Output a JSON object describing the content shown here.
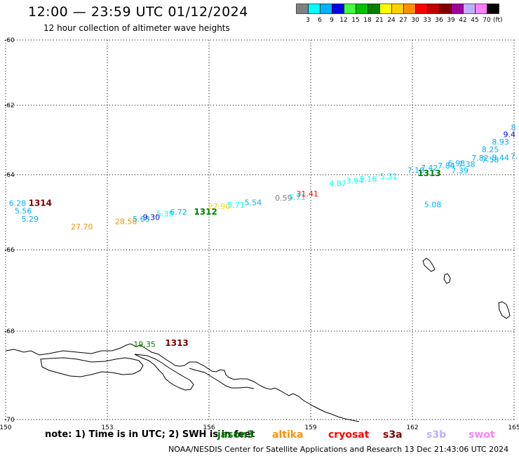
{
  "header": {
    "title": "12:00 — 23:59 UTC 01/12/2024",
    "subtitle": "12 hour collection of altimeter wave heights"
  },
  "color_scale": {
    "unit": "(ft)",
    "bins": [
      {
        "label": "3",
        "color": "#808080"
      },
      {
        "label": "6",
        "color": "#00ffff"
      },
      {
        "label": "9",
        "color": "#00b0ff"
      },
      {
        "label": "12",
        "color": "#0000e0"
      },
      {
        "label": "15",
        "color": "#40ff40"
      },
      {
        "label": "18",
        "color": "#00c000"
      },
      {
        "label": "21",
        "color": "#008000"
      },
      {
        "label": "24",
        "color": "#ffff00"
      },
      {
        "label": "27",
        "color": "#ffd000"
      },
      {
        "label": "30",
        "color": "#ff9000"
      },
      {
        "label": "33",
        "color": "#ff0000"
      },
      {
        "label": "36",
        "color": "#c00000"
      },
      {
        "label": "39",
        "color": "#800000"
      },
      {
        "label": "42",
        "color": "#a000a0"
      },
      {
        "label": "45",
        "color": "#c0b0ff"
      },
      {
        "label": "70",
        "color": "#ff80ff"
      },
      {
        "label": "",
        "color": "#000000"
      }
    ]
  },
  "map": {
    "lon_ticks": [
      150,
      153,
      156,
      159,
      162,
      165
    ],
    "lat_ticks": [
      -60,
      -62,
      -64,
      -66,
      -68,
      -70
    ],
    "grid": true,
    "observations": [
      {
        "text": "6.28",
        "lon": 150.35,
        "lat": -64.76,
        "color": "#00b0ff"
      },
      {
        "text": "5.56",
        "lon": 150.52,
        "lat": -64.96,
        "color": "#00b0ff"
      },
      {
        "text": "5.29",
        "lon": 150.72,
        "lat": -65.18,
        "color": "#00b0ff"
      },
      {
        "text": "1314",
        "lon": 151.02,
        "lat": -64.76,
        "color": "#800000",
        "bold": true
      },
      {
        "text": "27.70",
        "lon": 152.25,
        "lat": -65.38,
        "color": "#ff9000"
      },
      {
        "text": "28.58",
        "lon": 153.55,
        "lat": -65.24,
        "color": "#ff9000"
      },
      {
        "text": "5.63",
        "lon": 154.0,
        "lat": -65.18,
        "color": "#00b0ff"
      },
      {
        "text": "9.30",
        "lon": 154.3,
        "lat": -65.13,
        "color": "#0000e0"
      },
      {
        "text": "5.39",
        "lon": 154.7,
        "lat": -65.04,
        "color": "#00ffff"
      },
      {
        "text": "6.72",
        "lon": 155.1,
        "lat": -64.99,
        "color": "#00b0ff"
      },
      {
        "text": "1312",
        "lon": 155.9,
        "lat": -64.99,
        "color": "#008000",
        "bold": true
      },
      {
        "text": "27.90",
        "lon": 156.3,
        "lat": -64.84,
        "color": "#ffd000"
      },
      {
        "text": "5.71",
        "lon": 156.8,
        "lat": -64.8,
        "color": "#00ffff"
      },
      {
        "text": "5.54",
        "lon": 157.3,
        "lat": -64.74,
        "color": "#00b0ff"
      },
      {
        "text": "0.59",
        "lon": 158.2,
        "lat": -64.62,
        "color": "#808080"
      },
      {
        "text": "5.71",
        "lon": 158.6,
        "lat": -64.6,
        "color": "#00ffff"
      },
      {
        "text": "31.41",
        "lon": 158.9,
        "lat": -64.5,
        "color": "#ff0000"
      },
      {
        "text": "4.87",
        "lon": 159.8,
        "lat": -64.23,
        "color": "#00ffff"
      },
      {
        "text": "3.94",
        "lon": 160.3,
        "lat": -64.16,
        "color": "#00ffff"
      },
      {
        "text": "5.16",
        "lon": 160.7,
        "lat": -64.11,
        "color": "#00ffff"
      },
      {
        "text": "5.31",
        "lon": 161.3,
        "lat": -64.04,
        "color": "#00ffff"
      },
      {
        "text": "7.10",
        "lon": 162.1,
        "lat": -63.87,
        "color": "#00b0ff"
      },
      {
        "text": "1313",
        "lon": 162.5,
        "lat": -63.96,
        "color": "#008000",
        "bold": true
      },
      {
        "text": "7.42",
        "lon": 162.5,
        "lat": -63.8,
        "color": "#00b0ff"
      },
      {
        "text": "7.84",
        "lon": 163.0,
        "lat": -63.74,
        "color": "#00b0ff"
      },
      {
        "text": "6.98",
        "lon": 163.3,
        "lat": -63.67,
        "color": "#00b0ff"
      },
      {
        "text": "7.38",
        "lon": 163.6,
        "lat": -63.7,
        "color": "#00b0ff"
      },
      {
        "text": "7.39",
        "lon": 163.4,
        "lat": -63.88,
        "color": "#00b0ff"
      },
      {
        "text": "7.82",
        "lon": 164.0,
        "lat": -63.52,
        "color": "#00b0ff"
      },
      {
        "text": "7.58",
        "lon": 164.3,
        "lat": -63.57,
        "color": "#00b0ff"
      },
      {
        "text": "8.44",
        "lon": 164.6,
        "lat": -63.5,
        "color": "#00b0ff"
      },
      {
        "text": "7.",
        "lon": 165.0,
        "lat": -63.46,
        "color": "#00b0ff"
      },
      {
        "text": "8.25",
        "lon": 164.3,
        "lat": -63.27,
        "color": "#00b0ff"
      },
      {
        "text": "8.93",
        "lon": 164.6,
        "lat": -63.05,
        "color": "#00b0ff"
      },
      {
        "text": "9.4",
        "lon": 164.86,
        "lat": -62.84,
        "color": "#0000e0"
      },
      {
        "text": "8",
        "lon": 164.98,
        "lat": -62.64,
        "color": "#00b0ff"
      },
      {
        "text": "5.08",
        "lon": 162.6,
        "lat": -64.79,
        "color": "#00b0ff"
      },
      {
        "text": "19.35",
        "lon": 154.1,
        "lat": -68.29,
        "color": "#008000"
      },
      {
        "text": "1313",
        "lon": 155.05,
        "lat": -68.27,
        "color": "#800000",
        "bold": true
      }
    ]
  },
  "note": "note:  1) Time is in UTC; 2) SWH is in feet",
  "satellites": [
    {
      "name": "jason3",
      "color": "#008000"
    },
    {
      "name": "altika",
      "color": "#ff9000"
    },
    {
      "name": "cryosat",
      "color": "#ff0000"
    },
    {
      "name": "s3a",
      "color": "#800000"
    },
    {
      "name": "s3b",
      "color": "#c0b0ff"
    },
    {
      "name": "swot",
      "color": "#ff80ff"
    }
  ],
  "footer": "NOAA/NESDIS Center for Satellite Applications and Research    13 Dec 21:43:06 UTC 2024"
}
